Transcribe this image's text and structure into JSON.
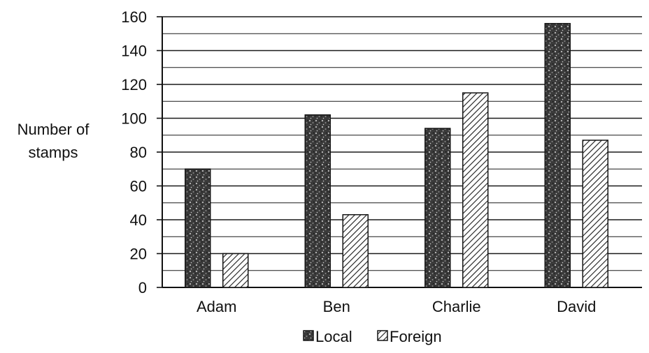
{
  "chart_data": {
    "type": "bar",
    "title": "",
    "xlabel": "",
    "ylabel": "Number of stamps",
    "ylabel_lines": [
      "Number of",
      "stamps"
    ],
    "categories": [
      "Adam",
      "Ben",
      "Charlie",
      "David"
    ],
    "series": [
      {
        "name": "Local",
        "values": [
          70,
          102,
          94,
          156
        ]
      },
      {
        "name": "Foreign",
        "values": [
          20,
          43,
          115,
          87
        ]
      }
    ],
    "ylim": [
      0,
      160
    ],
    "yticks": [
      0,
      20,
      40,
      60,
      80,
      100,
      120,
      140,
      160
    ],
    "grid": true,
    "legend_position": "bottom-center"
  },
  "colors": {
    "grid": "#1a1a1a",
    "axis": "#111111",
    "bar_outline": "#151515",
    "local_fill": "#3a3a3a",
    "foreign_fill": "#ffffff",
    "foreign_hatch": "#1a1a1a"
  }
}
